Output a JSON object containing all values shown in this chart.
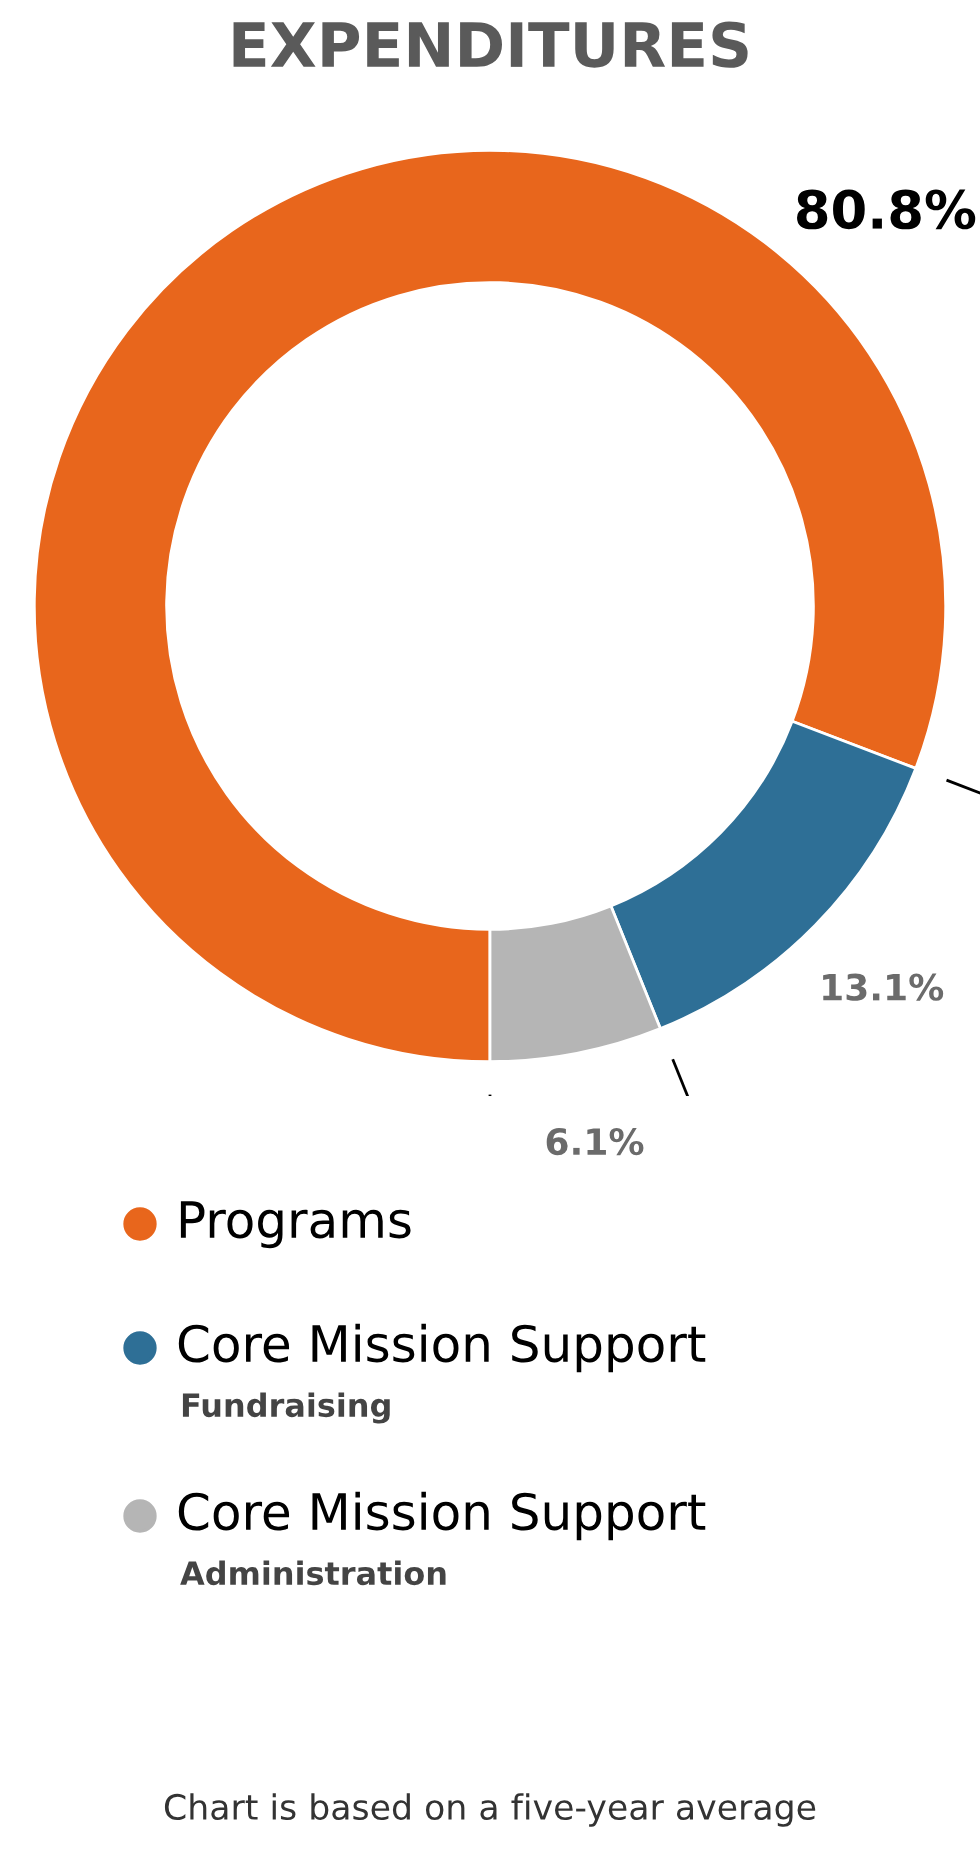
{
  "chart_data": {
    "type": "donut",
    "title": "EXPENDITURES",
    "categories": [
      "Programs",
      "Core Mission Support\nFundraising",
      "Core Mission Support\nAdministration"
    ],
    "values": [
      80.8,
      13.1,
      6.1
    ],
    "colors": [
      "#e8661c",
      "#2e6f96",
      "#b5b5b5"
    ],
    "value_labels": [
      "80.8%",
      "13.1%",
      "6.1%"
    ],
    "legend": "bottom",
    "annotations": [
      "Chart is based on a five-year average"
    ]
  }
}
